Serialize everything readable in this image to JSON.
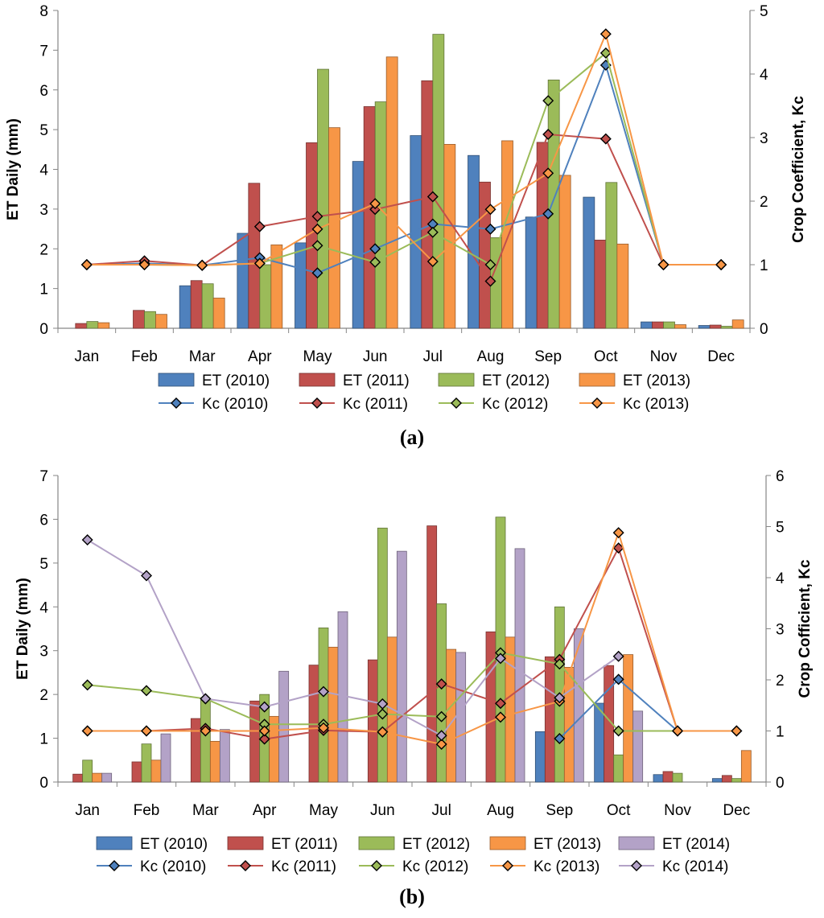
{
  "chart_data": [
    {
      "type": "bar",
      "panel_label": "(a)",
      "categories": [
        "Jan",
        "Feb",
        "Mar",
        "Apr",
        "May",
        "Jun",
        "Jul",
        "Aug",
        "Sep",
        "Oct",
        "Nov",
        "Dec"
      ],
      "ylabel_left": "ET Daily (mm)",
      "ylabel_right": "Crop Coefficient, Kc",
      "ylim_left": [
        0,
        8
      ],
      "ylim_right": [
        0,
        5
      ],
      "yticks_left": [
        "0",
        "1",
        "2",
        "3",
        "4",
        "5",
        "6",
        "7",
        "8"
      ],
      "yticks_right": [
        "0",
        "1",
        "2",
        "3",
        "4",
        "5"
      ],
      "bar_series": [
        {
          "name": "ET (2010)",
          "color": "#4F81BD",
          "values": [
            0,
            0,
            1.07,
            2.39,
            2.15,
            4.2,
            4.85,
            4.35,
            2.8,
            3.3,
            0.16,
            0.07
          ]
        },
        {
          "name": "ET (2011)",
          "color": "#C0504D",
          "values": [
            0.12,
            0.45,
            1.2,
            3.65,
            4.67,
            5.58,
            6.23,
            3.68,
            4.68,
            2.22,
            0.16,
            0.08
          ]
        },
        {
          "name": "ET (2012)",
          "color": "#9BBB59",
          "values": [
            0.17,
            0.42,
            1.12,
            1.6,
            6.52,
            5.7,
            7.4,
            2.28,
            6.25,
            3.67,
            0.16,
            0.05
          ]
        },
        {
          "name": "ET (2013)",
          "color": "#F79646",
          "values": [
            0.14,
            0.35,
            0.76,
            2.1,
            5.05,
            6.83,
            4.63,
            4.72,
            3.85,
            2.12,
            0.09,
            0.21
          ]
        }
      ],
      "line_series": [
        {
          "name": "Kc (2010)",
          "color": "#4F81BD",
          "values": [
            1,
            1.02,
            0.99,
            1.11,
            0.87,
            1.25,
            1.64,
            1.56,
            1.8,
            4.14,
            1,
            1
          ]
        },
        {
          "name": "Kc (2011)",
          "color": "#C0504D",
          "values": [
            1,
            1.06,
            0.99,
            1.6,
            1.76,
            1.87,
            2.07,
            0.74,
            3.05,
            2.98,
            1,
            1
          ]
        },
        {
          "name": "Kc (2012)",
          "color": "#9BBB59",
          "values": [
            1,
            1,
            0.99,
            1.02,
            1.3,
            1.04,
            1.51,
            1,
            3.58,
            4.33,
            1,
            1
          ]
        },
        {
          "name": "Kc (2013)",
          "color": "#F79646",
          "values": [
            1,
            1,
            0.99,
            1.02,
            1.56,
            1.96,
            1.05,
            1.87,
            2.44,
            4.63,
            1,
            1
          ]
        }
      ]
    },
    {
      "type": "bar",
      "panel_label": "(b)",
      "categories": [
        "Jan",
        "Feb",
        "Mar",
        "Apr",
        "May",
        "Jun",
        "Jul",
        "Aug",
        "Sep",
        "Oct",
        "Nov",
        "Dec"
      ],
      "ylabel_left": "ET Daily (mm)",
      "ylabel_right": "Crop Cofficient, Kc",
      "ylim_left": [
        0,
        7
      ],
      "ylim_right": [
        0,
        6
      ],
      "yticks_left": [
        "0",
        "1",
        "2",
        "3",
        "4",
        "5",
        "6",
        "7"
      ],
      "yticks_right": [
        "0",
        "1",
        "2",
        "3",
        "4",
        "5",
        "6"
      ],
      "bar_series": [
        {
          "name": "ET (2010)",
          "color": "#4F81BD",
          "values": [
            0,
            0,
            0,
            0,
            0,
            0,
            0,
            0,
            1.15,
            1.8,
            0.17,
            0.08
          ]
        },
        {
          "name": "ET (2011)",
          "color": "#C0504D",
          "values": [
            0.18,
            0.46,
            1.45,
            1.85,
            2.67,
            2.79,
            5.85,
            3.43,
            2.86,
            2.66,
            0.24,
            0.15
          ]
        },
        {
          "name": "ET (2012)",
          "color": "#9BBB59",
          "values": [
            0.5,
            0.87,
            1.87,
            2,
            3.52,
            5.8,
            4.07,
            6.05,
            4,
            0.62,
            0.2,
            0.08
          ]
        },
        {
          "name": "ET (2013)",
          "color": "#F79646",
          "values": [
            0.2,
            0.5,
            0.93,
            1.5,
            3.08,
            3.31,
            3.03,
            3.31,
            2.62,
            2.91,
            0,
            0.72
          ]
        },
        {
          "name": "ET (2014)",
          "color": "#B3A2C7",
          "values": [
            0.2,
            1.1,
            1.2,
            2.53,
            3.89,
            5.27,
            2.96,
            5.33,
            3.5,
            1.62,
            0,
            0
          ]
        }
      ],
      "line_series": [
        {
          "name": "Kc (2010)",
          "color": "#4F81BD",
          "values": [
            null,
            null,
            null,
            null,
            null,
            null,
            null,
            null,
            0.85,
            2.01,
            1,
            null
          ]
        },
        {
          "name": "Kc (2011)",
          "color": "#C0504D",
          "values": [
            1,
            1,
            1.05,
            0.84,
            1.01,
            0.98,
            1.92,
            1.54,
            2.4,
            4.58,
            1,
            1
          ]
        },
        {
          "name": "Kc (2012)",
          "color": "#9BBB59",
          "values": [
            1.9,
            1.79,
            1.63,
            1.13,
            1.13,
            1.33,
            1.28,
            2.53,
            2.31,
            1,
            1,
            1
          ]
        },
        {
          "name": "Kc (2013)",
          "color": "#F79646",
          "values": [
            1,
            1,
            1,
            1,
            1.06,
            0.98,
            0.74,
            1.27,
            1.58,
            4.88,
            1,
            1
          ]
        },
        {
          "name": "Kc (2014)",
          "color": "#B3A2C7",
          "values": [
            4.74,
            4.04,
            1.63,
            1.47,
            1.77,
            1.53,
            0.91,
            2.42,
            1.65,
            2.46,
            null,
            null
          ]
        }
      ]
    }
  ]
}
